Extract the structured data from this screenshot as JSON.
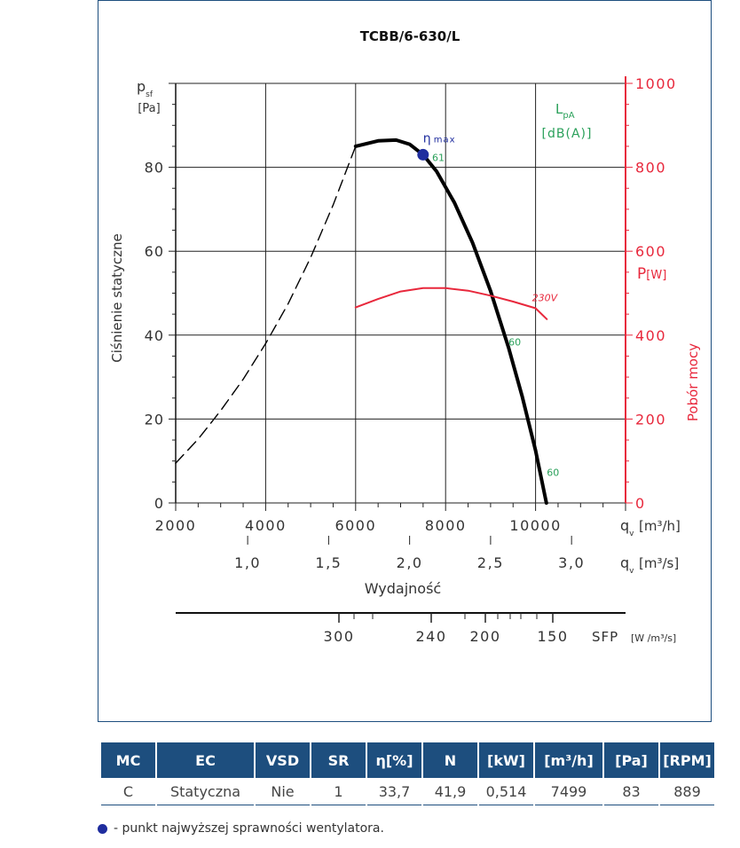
{
  "chart_data": {
    "type": "line",
    "title": "TCBB/6-630/L",
    "x": {
      "label": "q",
      "label_sub": "v",
      "unit": "[m³/h]",
      "range": [
        2000,
        12000
      ],
      "ticks": [
        2000,
        4000,
        6000,
        8000,
        10000
      ],
      "tick_labels": [
        "2000",
        "4000",
        "6000",
        "8000",
        "10000"
      ]
    },
    "x2": {
      "label": "q",
      "label_sub": "v",
      "unit": "[m³/s]",
      "ticks": [
        1.0,
        1.5,
        2.0,
        2.5,
        3.0
      ],
      "tick_labels": [
        "1,0",
        "1,5",
        "2,0",
        "2,5",
        "3,0"
      ],
      "caption": "Wydajność"
    },
    "sfp": {
      "label": "SFP",
      "unit": "[W /m³/s]",
      "ticks": [
        300,
        240,
        200,
        150
      ],
      "tick_labels": [
        "300",
        "240",
        "200",
        "150"
      ],
      "minor_ticks": [
        280,
        260,
        220,
        190,
        180,
        170,
        160
      ]
    },
    "y": {
      "label": "p",
      "label_sub": "sf",
      "unit": "[Pa]",
      "caption": "Ciśnienie statyczne",
      "range": [
        0,
        100
      ],
      "ticks": [
        0,
        20,
        40,
        60,
        80
      ],
      "tick_labels": [
        "0",
        "20",
        "40",
        "60",
        "80"
      ]
    },
    "y2": {
      "label": "P",
      "unit": "[W]",
      "caption": "Pobór mocy",
      "range": [
        0,
        1000
      ],
      "ticks": [
        0,
        200,
        400,
        600,
        800,
        1000
      ],
      "tick_labels": [
        "0",
        "200",
        "400",
        "600",
        "800",
        "1000"
      ]
    },
    "noise_label": {
      "name": "L",
      "sub": "pA",
      "unit": "[dB(A)]"
    },
    "series": [
      {
        "name": "",
        "style": "dashed",
        "color": "#000000",
        "x": [
          2000,
          2500,
          3000,
          3500,
          4000,
          4500,
          5000,
          5500,
          6000
        ],
        "y": [
          9.5,
          15.2,
          22,
          29.5,
          38,
          47.5,
          58.5,
          71,
          85
        ]
      },
      {
        "name": "",
        "style": "solid",
        "color": "#000000",
        "x": [
          6000,
          6500,
          6900,
          7200,
          7499,
          7800,
          8200,
          8600,
          9000,
          9400,
          9700,
          10000,
          10240
        ],
        "y": [
          85,
          86.3,
          86.5,
          85.5,
          83,
          79,
          71.5,
          62,
          50.5,
          37,
          25.5,
          12.5,
          0
        ]
      },
      {
        "name": "230V",
        "axis": "y2",
        "color": "#e8283c",
        "x": [
          6000,
          6500,
          7000,
          7500,
          8000,
          8500,
          9000,
          9500,
          10000,
          10250
        ],
        "y": [
          466,
          486,
          504,
          512,
          512,
          506,
          494,
          480,
          464,
          438
        ]
      }
    ],
    "points": [
      {
        "name": "ηmax",
        "x": 7499,
        "y": 83,
        "color": "#1f2d9e"
      }
    ],
    "annotations": [
      {
        "text": "61",
        "x": 7700,
        "y": 81.5,
        "color": "#2aa05a"
      },
      {
        "text": "60",
        "x": 9400,
        "y": 37.5,
        "color": "#2aa05a"
      },
      {
        "text": "60",
        "x": 10250,
        "y": 6.5,
        "color": "#2aa05a"
      }
    ]
  },
  "table": {
    "headers": [
      "MC",
      "EC",
      "VSD",
      "SR",
      "η[%]",
      "N",
      "[kW]",
      "[m³/h]",
      "[Pa]",
      "[RPM]"
    ],
    "row": [
      "C",
      "Statyczna",
      "Nie",
      "1",
      "33,7",
      "41,9",
      "0,514",
      "7499",
      "83",
      "889"
    ]
  },
  "legend": {
    "text": "- punkt najwyższej sprawności wentylatora."
  }
}
